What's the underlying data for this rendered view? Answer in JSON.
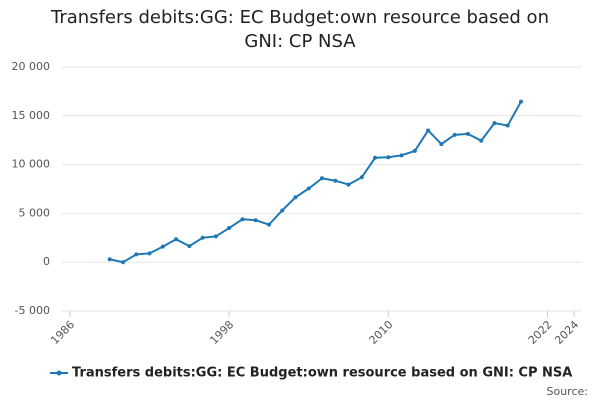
{
  "chart_data": {
    "type": "line",
    "title": "Transfers debits:GG: EC Budget:own resource based on GNI: CP NSA",
    "x": [
      1989,
      1990,
      1991,
      1992,
      1993,
      1994,
      1995,
      1996,
      1997,
      1998,
      1999,
      2000,
      2001,
      2002,
      2003,
      2004,
      2005,
      2006,
      2007,
      2008,
      2009,
      2010,
      2011,
      2012,
      2013,
      2014,
      2015,
      2016,
      2017,
      2018,
      2019,
      2020
    ],
    "series": [
      {
        "name": "Transfers debits:GG: EC Budget:own resource based on GNI: CP NSA",
        "color": "#1f78b4",
        "values": [
          300,
          0,
          800,
          900,
          1600,
          2350,
          1650,
          2500,
          2650,
          3500,
          4400,
          4300,
          3850,
          5300,
          6650,
          7550,
          8600,
          8350,
          7950,
          8700,
          10700,
          10750,
          10950,
          11400,
          13500,
          12100,
          13050,
          13150,
          12450,
          14250,
          14000,
          16450
        ]
      }
    ],
    "xlim": [
      1985.4,
      2024.6
    ],
    "xticks": [
      1986,
      1998,
      2010,
      2022,
      2024
    ],
    "ylim": [
      -5000,
      20000
    ],
    "yticks": [
      {
        "value": -5000,
        "label": "-5 000"
      },
      0,
      {
        "value": 5000,
        "label": "5 000"
      },
      {
        "value": 10000,
        "label": "10 000"
      },
      {
        "value": 15000,
        "label": "15 000"
      },
      {
        "value": 20000,
        "label": "20 000"
      }
    ],
    "grid": true,
    "source": "Source:"
  }
}
